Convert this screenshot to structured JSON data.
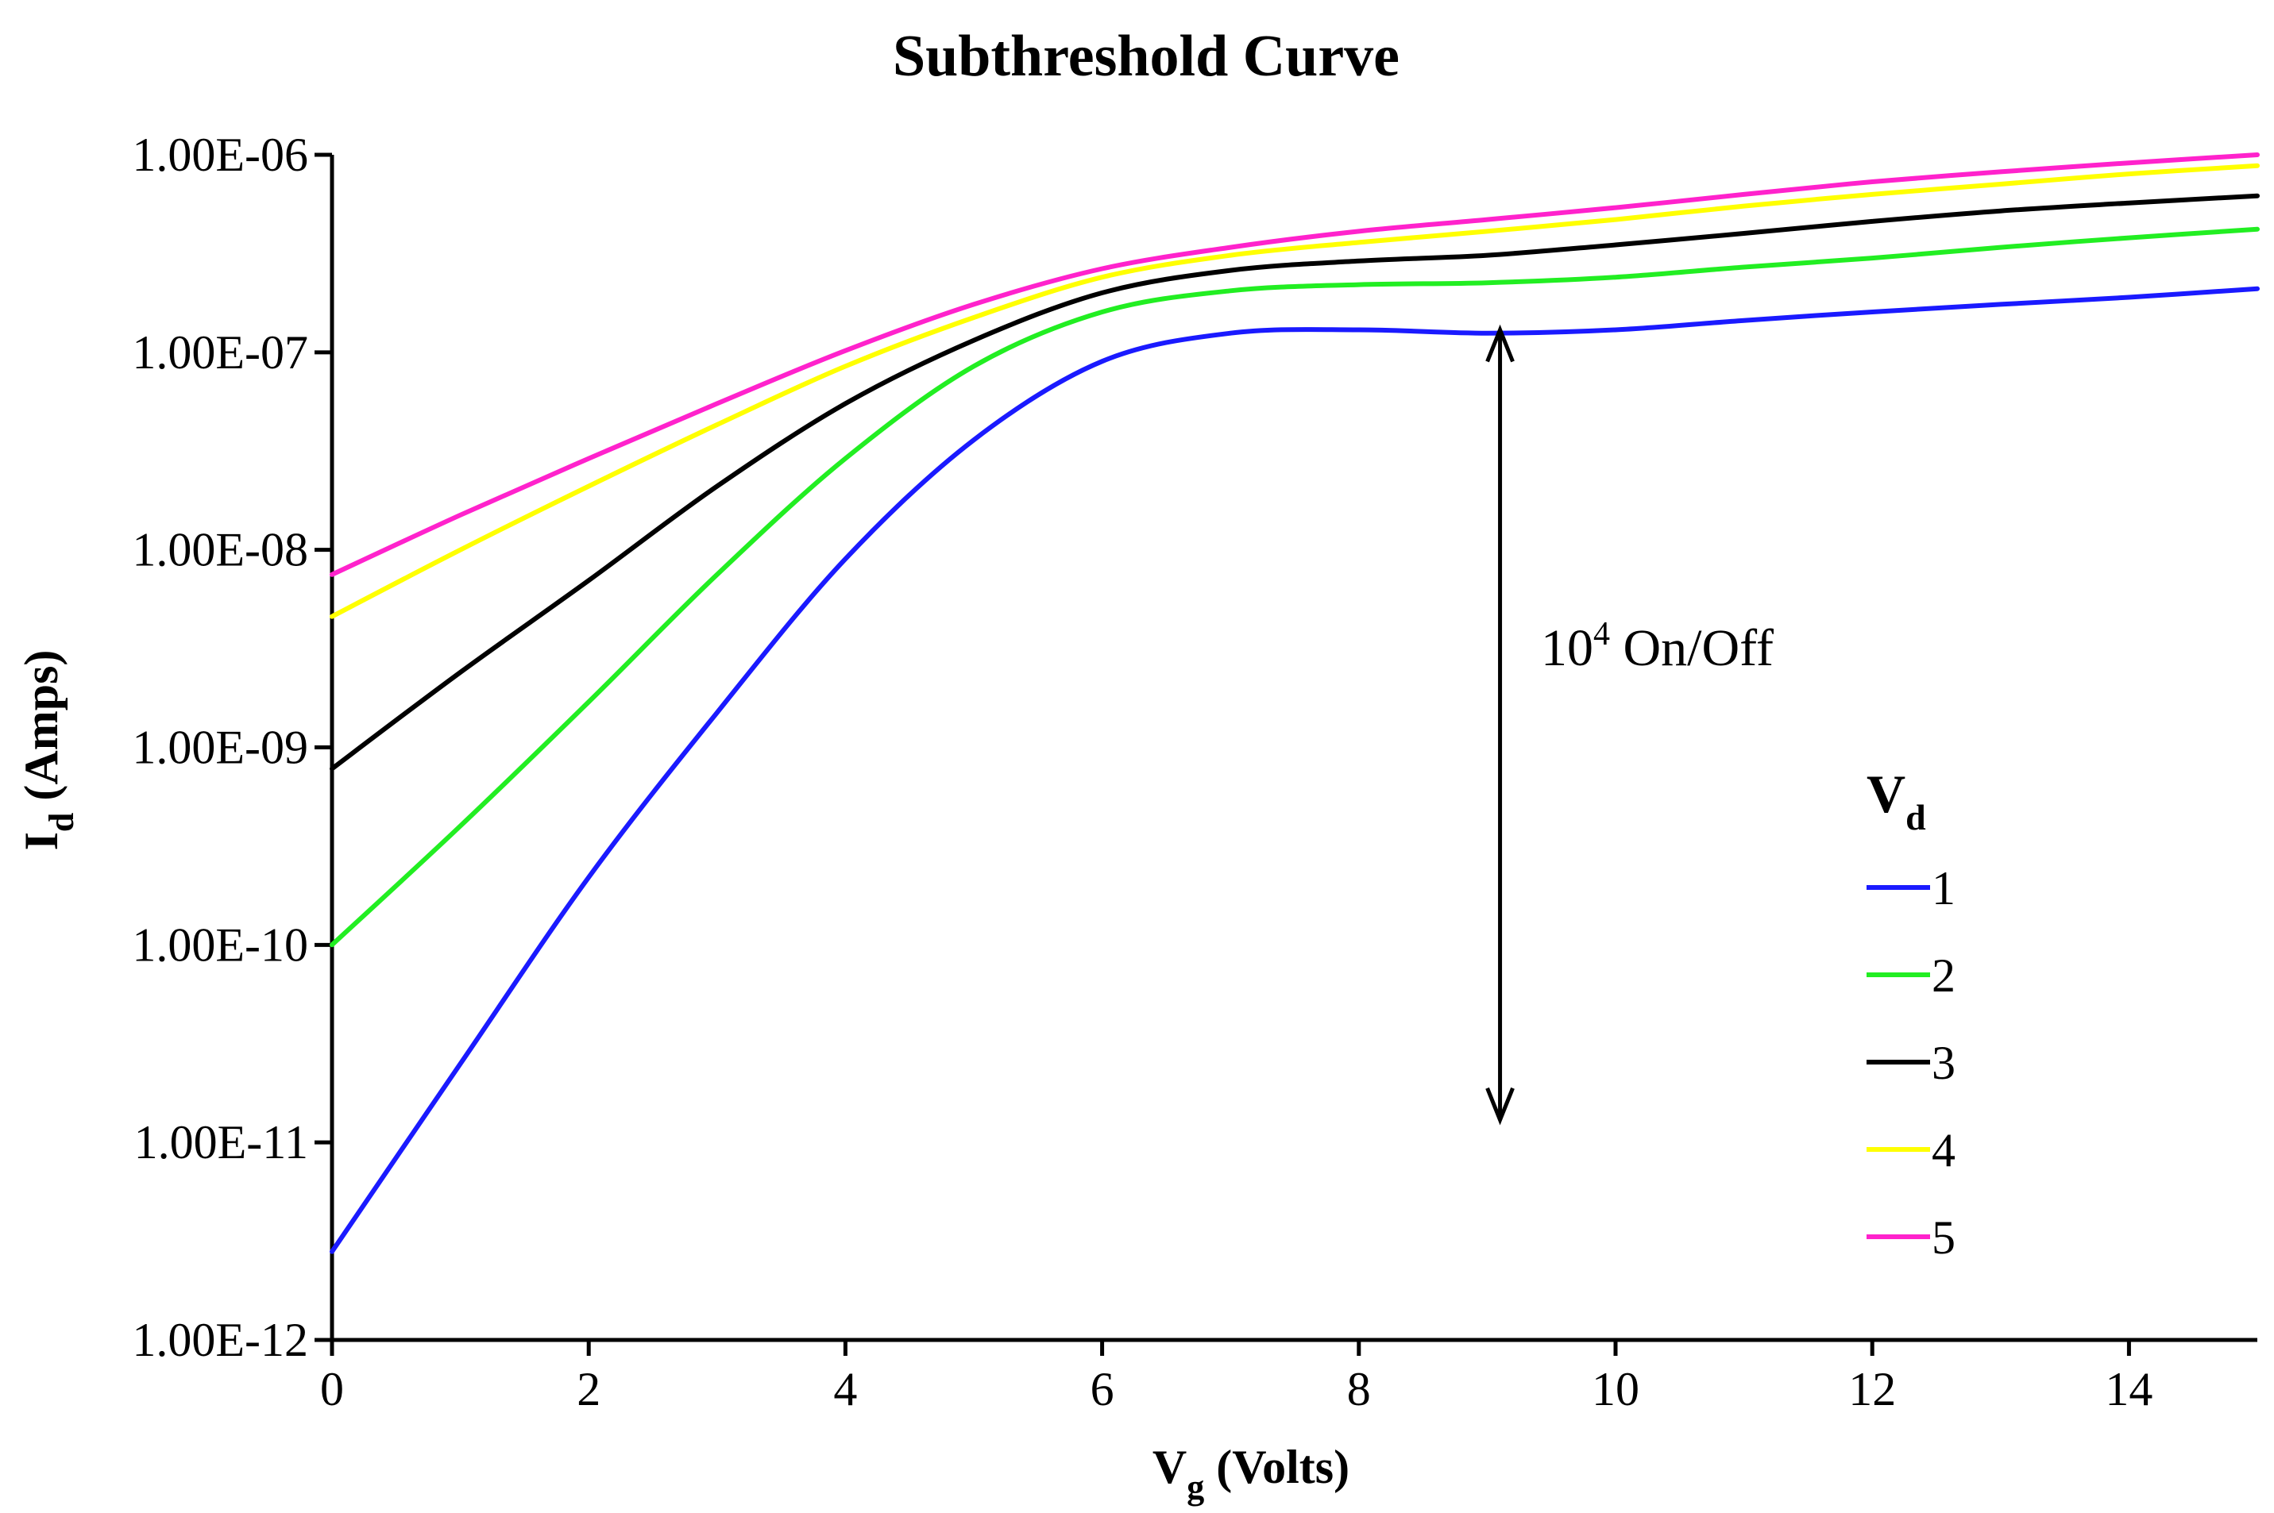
{
  "chart_data": {
    "type": "line",
    "title": "Subthreshold Curve",
    "xlabel": {
      "main": "V",
      "sub": "g",
      "rest": " (Volts)"
    },
    "ylabel": {
      "main": "I",
      "sub": "d",
      "rest": " (Amps)"
    },
    "xlim": [
      0,
      15
    ],
    "ylim_log10": [
      -12,
      -6
    ],
    "y_scale": "log",
    "x_ticks": [
      0,
      2,
      4,
      6,
      8,
      10,
      12,
      14
    ],
    "x_tick_labels": [
      "0",
      "2",
      "4",
      "6",
      "8",
      "10",
      "12",
      "14"
    ],
    "y_ticks_log10": [
      -6,
      -7,
      -8,
      -9,
      -10,
      -11,
      -12
    ],
    "y_tick_labels": [
      "1.00E-06",
      "1.00E-07",
      "1.00E-08",
      "1.00E-09",
      "1.00E-10",
      "1.00E-11",
      "1.00E-12"
    ],
    "legend": {
      "title_main": "V",
      "title_sub": "d",
      "position": "right"
    },
    "series": [
      {
        "name": "1",
        "color": "#1a1aff",
        "x": [
          0,
          1,
          2,
          3,
          4,
          5,
          6,
          7,
          8,
          9,
          10,
          11,
          12,
          13,
          14,
          15
        ],
        "y": [
          2.8e-12,
          2.5e-11,
          2.2e-10,
          1.5e-09,
          9e-09,
          3.6e-08,
          9e-08,
          1.25e-07,
          1.3e-07,
          1.25e-07,
          1.3e-07,
          1.45e-07,
          1.6e-07,
          1.75e-07,
          1.9e-07,
          2.1e-07
        ]
      },
      {
        "name": "2",
        "color": "#22ee22",
        "x": [
          0,
          1,
          2,
          3,
          4,
          5,
          6,
          7,
          8,
          9,
          10,
          11,
          12,
          13,
          14,
          15
        ],
        "y": [
          1e-10,
          4e-10,
          1.7e-09,
          7.5e-09,
          2.9e-08,
          8.5e-08,
          1.6e-07,
          2.05e-07,
          2.2e-07,
          2.25e-07,
          2.4e-07,
          2.7e-07,
          3e-07,
          3.4e-07,
          3.8e-07,
          4.2e-07
        ]
      },
      {
        "name": "3",
        "color": "#000000",
        "x": [
          0,
          1,
          2,
          3,
          4,
          5,
          6,
          7,
          8,
          9,
          10,
          11,
          12,
          13,
          14,
          15
        ],
        "y": [
          7.8e-10,
          2.4e-09,
          7e-09,
          2.1e-08,
          5.5e-08,
          1.15e-07,
          2e-07,
          2.6e-07,
          2.9e-07,
          3.1e-07,
          3.5e-07,
          4e-07,
          4.6e-07,
          5.2e-07,
          5.7e-07,
          6.2e-07
        ]
      },
      {
        "name": "4",
        "color": "#ffff00",
        "x": [
          0,
          1,
          2,
          3,
          4,
          5,
          6,
          7,
          8,
          9,
          10,
          11,
          12,
          13,
          14,
          15
        ],
        "y": [
          4.6e-09,
          1e-08,
          2.1e-08,
          4.3e-08,
          8.5e-08,
          1.5e-07,
          2.4e-07,
          3.1e-07,
          3.6e-07,
          4.1e-07,
          4.7e-07,
          5.5e-07,
          6.3e-07,
          7.1e-07,
          8e-07,
          8.8e-07
        ]
      },
      {
        "name": "5",
        "color": "#ff22cc",
        "x": [
          0,
          1,
          2,
          3,
          4,
          5,
          6,
          7,
          8,
          9,
          10,
          11,
          12,
          13,
          14,
          15
        ],
        "y": [
          7.5e-09,
          1.5e-08,
          2.9e-08,
          5.5e-08,
          1.02e-07,
          1.75e-07,
          2.65e-07,
          3.4e-07,
          4.1e-07,
          4.7e-07,
          5.4e-07,
          6.3e-07,
          7.3e-07,
          8.2e-07,
          9.1e-07,
          1e-06
        ]
      }
    ],
    "annotation": {
      "base": "10",
      "exponent": "4",
      "text": " On/Off",
      "arrow_x": 9.1,
      "arrow_y_top": 1.3e-07,
      "arrow_y_bottom": 1.3e-11
    }
  }
}
